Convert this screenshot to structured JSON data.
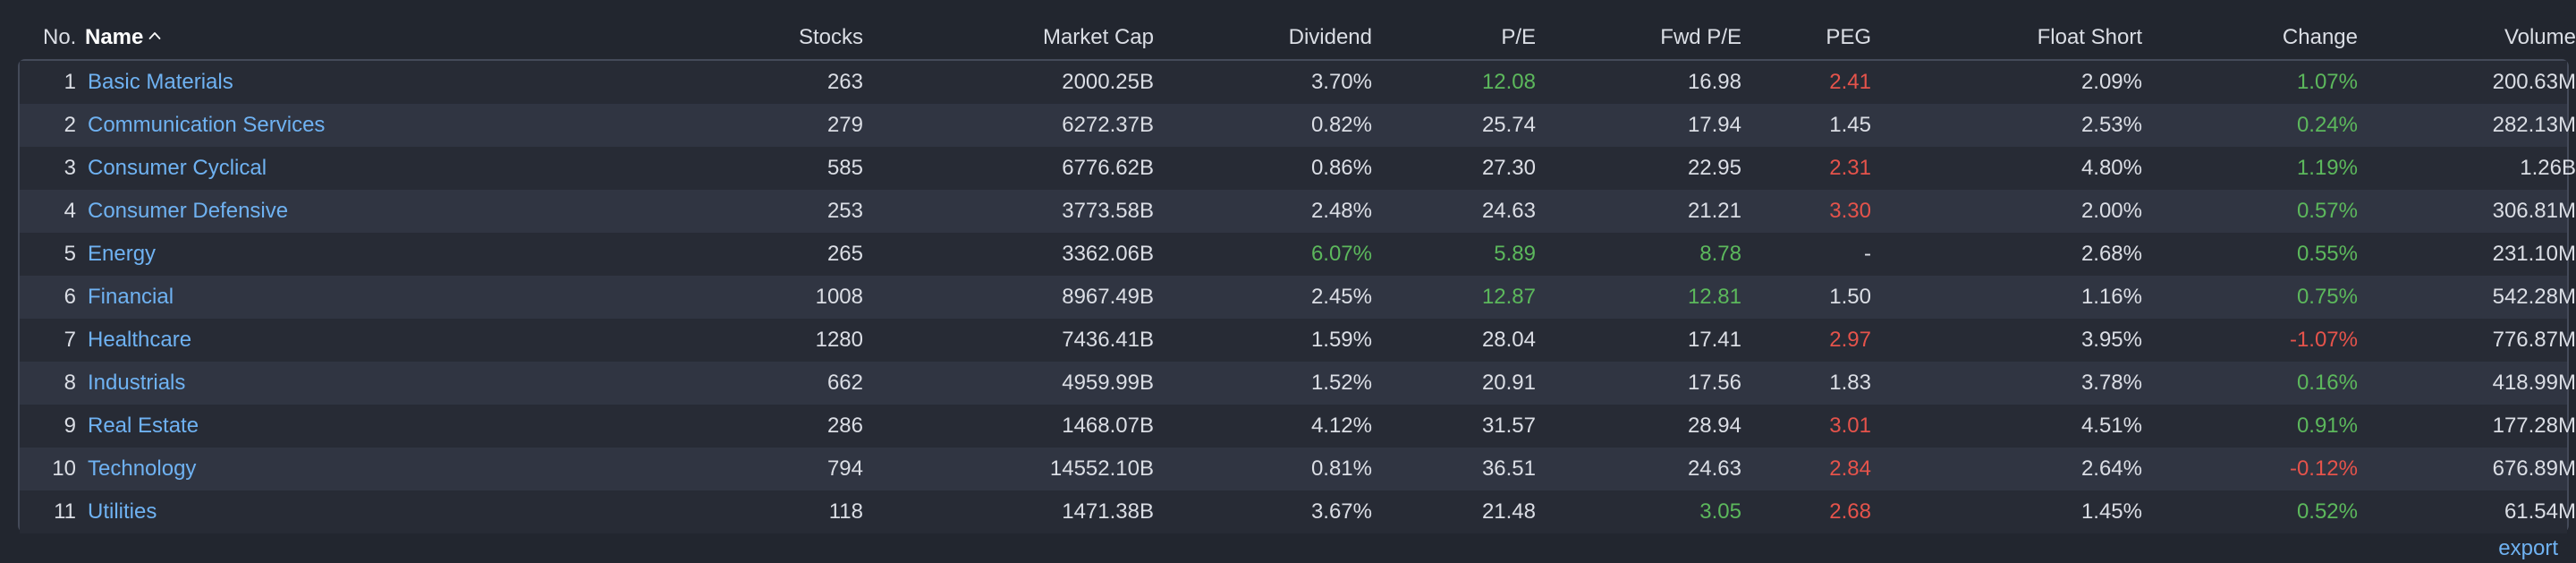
{
  "columns": {
    "no": "No.",
    "name": "Name",
    "stocks": "Stocks",
    "market_cap": "Market Cap",
    "dividend": "Dividend",
    "pe": "P/E",
    "fwd_pe": "Fwd P/E",
    "peg": "PEG",
    "float_short": "Float Short",
    "change": "Change",
    "volume": "Volume"
  },
  "sort_icon": "chevron-up-icon",
  "colors": {
    "positive": "#5cb85c",
    "negative": "#e5534b",
    "link": "#6fb2f2"
  },
  "rows": [
    {
      "no": "1",
      "name": "Basic Materials",
      "stocks": "263",
      "market_cap": "2000.25B",
      "dividend": "3.70%",
      "pe": "12.08",
      "fwd_pe": "16.98",
      "peg": "2.41",
      "float_short": "2.09%",
      "change": "1.07%",
      "volume": "200.63M"
    },
    {
      "no": "2",
      "name": "Communication Services",
      "stocks": "279",
      "market_cap": "6272.37B",
      "dividend": "0.82%",
      "pe": "25.74",
      "fwd_pe": "17.94",
      "peg": "1.45",
      "float_short": "2.53%",
      "change": "0.24%",
      "volume": "282.13M"
    },
    {
      "no": "3",
      "name": "Consumer Cyclical",
      "stocks": "585",
      "market_cap": "6776.62B",
      "dividend": "0.86%",
      "pe": "27.30",
      "fwd_pe": "22.95",
      "peg": "2.31",
      "float_short": "4.80%",
      "change": "1.19%",
      "volume": "1.26B"
    },
    {
      "no": "4",
      "name": "Consumer Defensive",
      "stocks": "253",
      "market_cap": "3773.58B",
      "dividend": "2.48%",
      "pe": "24.63",
      "fwd_pe": "21.21",
      "peg": "3.30",
      "float_short": "2.00%",
      "change": "0.57%",
      "volume": "306.81M"
    },
    {
      "no": "5",
      "name": "Energy",
      "stocks": "265",
      "market_cap": "3362.06B",
      "dividend": "6.07%",
      "pe": "5.89",
      "fwd_pe": "8.78",
      "peg": "-",
      "float_short": "2.68%",
      "change": "0.55%",
      "volume": "231.10M"
    },
    {
      "no": "6",
      "name": "Financial",
      "stocks": "1008",
      "market_cap": "8967.49B",
      "dividend": "2.45%",
      "pe": "12.87",
      "fwd_pe": "12.81",
      "peg": "1.50",
      "float_short": "1.16%",
      "change": "0.75%",
      "volume": "542.28M"
    },
    {
      "no": "7",
      "name": "Healthcare",
      "stocks": "1280",
      "market_cap": "7436.41B",
      "dividend": "1.59%",
      "pe": "28.04",
      "fwd_pe": "17.41",
      "peg": "2.97",
      "float_short": "3.95%",
      "change": "-1.07%",
      "volume": "776.87M"
    },
    {
      "no": "8",
      "name": "Industrials",
      "stocks": "662",
      "market_cap": "4959.99B",
      "dividend": "1.52%",
      "pe": "20.91",
      "fwd_pe": "17.56",
      "peg": "1.83",
      "float_short": "3.78%",
      "change": "0.16%",
      "volume": "418.99M"
    },
    {
      "no": "9",
      "name": "Real Estate",
      "stocks": "286",
      "market_cap": "1468.07B",
      "dividend": "4.12%",
      "pe": "31.57",
      "fwd_pe": "28.94",
      "peg": "3.01",
      "float_short": "4.51%",
      "change": "0.91%",
      "volume": "177.28M"
    },
    {
      "no": "10",
      "name": "Technology",
      "stocks": "794",
      "market_cap": "14552.10B",
      "dividend": "0.81%",
      "pe": "36.51",
      "fwd_pe": "24.63",
      "peg": "2.84",
      "float_short": "2.64%",
      "change": "-0.12%",
      "volume": "676.89M"
    },
    {
      "no": "11",
      "name": "Utilities",
      "stocks": "118",
      "market_cap": "1471.38B",
      "dividend": "3.67%",
      "pe": "21.48",
      "fwd_pe": "3.05",
      "peg": "2.68",
      "float_short": "1.45%",
      "change": "0.52%",
      "volume": "61.54M"
    }
  ],
  "highlights": {
    "pe_positive": [
      "1",
      "5",
      "6"
    ],
    "fwd_pe_positive": [
      "5",
      "6",
      "11"
    ],
    "dividend_positive": [
      "5"
    ],
    "peg_negative": [
      "1",
      "3",
      "4",
      "7",
      "9",
      "10",
      "11"
    ]
  },
  "export_label": "export"
}
